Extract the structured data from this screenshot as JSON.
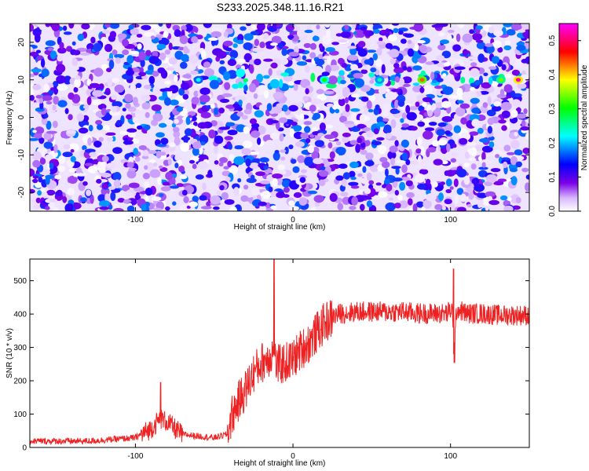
{
  "title": "S233.2025.348.11.16.R21",
  "chart_data": [
    {
      "type": "heatmap",
      "name": "spectrogram",
      "xlabel": "Height of straight line (km)",
      "ylabel": "Frequency (Hz)",
      "xlim": [
        -167,
        150
      ],
      "ylim": [
        -25,
        25
      ],
      "xticks": [
        -100,
        0,
        100
      ],
      "yticks": [
        20,
        10,
        0,
        -10,
        -20
      ],
      "colorbar": {
        "label": "Normalized spectral amplitude",
        "range": [
          0.0,
          0.55
        ],
        "ticks": [
          0.0,
          0.1,
          0.2,
          0.3,
          0.4,
          0.5
        ],
        "colormap": [
          "#ffffff",
          "#7b00e6",
          "#0000ff",
          "#00ffff",
          "#00ff00",
          "#ffff00",
          "#ff0000",
          "#ff00ff"
        ]
      },
      "features": {
        "signal_frequency_hz": 10,
        "signal_start_km": -65,
        "signal_end_km": 145,
        "signal_peak_amplitude": 0.55
      }
    },
    {
      "type": "line",
      "name": "snr",
      "xlabel": "Height of straight line (km)",
      "ylabel": "SNR (10 * v/v)",
      "xlim": [
        -167,
        150
      ],
      "ylim": [
        0,
        565
      ],
      "xticks": [
        -100,
        0,
        100
      ],
      "yticks": [
        0,
        100,
        200,
        300,
        400,
        500
      ],
      "color": "#ee2222",
      "series": [
        {
          "name": "SNR",
          "x": [
            -167,
            -150,
            -130,
            -115,
            -100,
            -90,
            -84,
            -80,
            -75,
            -70,
            -60,
            -50,
            -42,
            -39,
            -35,
            -30,
            -25,
            -20,
            -15,
            -13,
            -10,
            -5,
            0,
            5,
            10,
            15,
            20,
            25,
            30,
            40,
            50,
            60,
            70,
            80,
            90,
            98,
            101,
            102,
            104,
            110,
            120,
            130,
            140,
            150
          ],
          "y": [
            20,
            20,
            20,
            25,
            30,
            60,
            90,
            80,
            60,
            40,
            35,
            30,
            40,
            100,
            140,
            180,
            230,
            260,
            280,
            290,
            250,
            260,
            270,
            300,
            320,
            350,
            380,
            395,
            405,
            410,
            410,
            410,
            410,
            405,
            405,
            405,
            420,
            280,
            420,
            405,
            405,
            400,
            400,
            400
          ]
        }
      ],
      "spikes": [
        {
          "x": -84,
          "y": 195
        },
        {
          "x": -12,
          "y": 565
        },
        {
          "x": 102,
          "y": 535
        },
        {
          "x": 102.5,
          "y": 255
        }
      ]
    }
  ]
}
